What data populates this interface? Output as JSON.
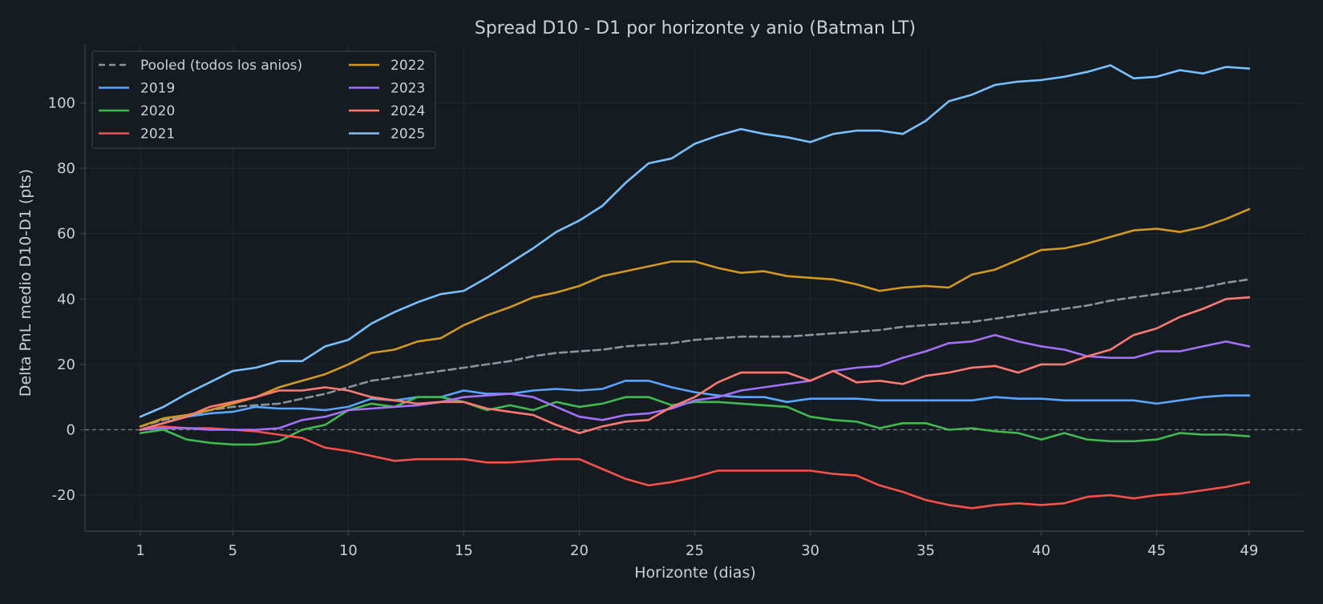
{
  "colors": {
    "background": "#161b22",
    "text": "#c9d1d9",
    "axis": "#3d444d",
    "grid": "#222830",
    "zero_line": "#7d8590",
    "pooled": "#8b949e"
  },
  "chart_data": {
    "type": "line",
    "title": "Spread D10 - D1 por horizonte y anio (Batman LT)",
    "xlabel": "Horizonte (dias)",
    "ylabel": "Delta PnL medio D10-D1 (pts)",
    "xlim": [
      -1.4,
      51.4
    ],
    "ylim": [
      -31,
      118
    ],
    "xticks": [
      1,
      5,
      10,
      15,
      20,
      25,
      30,
      35,
      40,
      45,
      49
    ],
    "yticks": [
      -20,
      0,
      20,
      40,
      60,
      80,
      100
    ],
    "grid": true,
    "zero_line": true,
    "legend": {
      "position": "top-left",
      "columns": 2
    },
    "x": [
      1,
      2,
      3,
      4,
      5,
      6,
      7,
      8,
      9,
      10,
      11,
      12,
      13,
      14,
      15,
      16,
      17,
      18,
      19,
      20,
      21,
      22,
      23,
      24,
      25,
      26,
      27,
      28,
      29,
      30,
      31,
      32,
      33,
      34,
      35,
      36,
      37,
      38,
      39,
      40,
      41,
      42,
      43,
      44,
      45,
      46,
      47,
      48,
      49
    ],
    "series": [
      {
        "name": "Pooled (todos los anios)",
        "color": "#8b949e",
        "dashed": true,
        "values": [
          1,
          3,
          4,
          6,
          7,
          7.5,
          8,
          9.5,
          11,
          13,
          15,
          16,
          17,
          18,
          19,
          20,
          21,
          22.5,
          23.5,
          24,
          24.5,
          25.5,
          26,
          26.5,
          27.5,
          28,
          28.5,
          28.5,
          28.5,
          29,
          29.5,
          30,
          30.5,
          31.5,
          32,
          32.5,
          33,
          34,
          35,
          36,
          37,
          38,
          39.5,
          40.5,
          41.5,
          42.5,
          43.5,
          45,
          46
        ]
      },
      {
        "name": "2019",
        "color": "#58a6ff",
        "values": [
          0,
          2,
          4,
          5,
          5.5,
          7,
          6.5,
          6.5,
          6,
          7,
          9.5,
          9,
          10,
          10,
          12,
          11,
          11,
          12,
          12.5,
          12,
          12.5,
          15,
          15,
          13,
          11.5,
          10.5,
          10,
          10,
          8.5,
          9.5,
          9.5,
          9.5,
          9,
          9,
          9,
          9,
          9,
          10,
          9.5,
          9.5,
          9,
          9,
          9,
          9,
          8,
          9,
          10,
          10.5,
          10.5
        ]
      },
      {
        "name": "2020",
        "color": "#3fb950",
        "values": [
          -1,
          0,
          -3,
          -4,
          -4.5,
          -4.5,
          -3.5,
          0,
          1.5,
          6,
          8,
          7,
          10,
          10,
          8.5,
          6,
          7.5,
          6,
          8.5,
          7,
          8,
          10,
          10,
          7.5,
          8.5,
          8.5,
          8,
          7.5,
          7,
          4,
          3,
          2.5,
          0.5,
          2,
          2,
          0,
          0.5,
          -0.5,
          -1,
          -3,
          -1,
          -3,
          -3.5,
          -3.5,
          -3,
          -1,
          -1.5,
          -1.5,
          -2
        ]
      },
      {
        "name": "2021",
        "color": "#f85149",
        "values": [
          0,
          1,
          0.5,
          0.5,
          0,
          -0.5,
          -1.5,
          -2.5,
          -5.5,
          -6.5,
          -8,
          -9.5,
          -9,
          -9,
          -9,
          -10,
          -10,
          -9.5,
          -9,
          -9,
          -12,
          -15,
          -17,
          -16,
          -14.5,
          -12.5,
          -12.5,
          -12.5,
          -12.5,
          -12.5,
          -13.5,
          -14,
          -17,
          -19,
          -21.5,
          -23,
          -24,
          -23,
          -22.5,
          -23,
          -22.5,
          -20.5,
          -20,
          -21,
          -20,
          -19.5,
          -18.5,
          -17.5,
          -16
        ]
      },
      {
        "name": "2022",
        "color": "#d29922",
        "values": [
          1,
          3.5,
          4.5,
          6,
          8,
          10,
          13,
          15,
          17,
          20,
          23.5,
          24.5,
          27,
          28,
          32,
          35,
          37.5,
          40.5,
          42,
          44,
          47,
          48.5,
          50,
          51.5,
          51.5,
          49.5,
          48,
          48.5,
          47,
          46.5,
          46,
          44.5,
          42.5,
          43.5,
          44,
          43.5,
          47.5,
          49,
          52,
          55,
          55.5,
          57,
          59,
          61,
          61.5,
          60.5,
          62,
          64.5,
          67.5
        ]
      },
      {
        "name": "2023",
        "color": "#a371f7",
        "values": [
          0,
          0.5,
          0.5,
          0,
          0,
          0,
          0.5,
          3,
          4,
          6,
          6.5,
          7,
          7.5,
          8.5,
          10,
          10.5,
          11,
          10,
          7,
          4,
          3,
          4.5,
          5,
          6.5,
          9,
          10,
          12,
          13,
          14,
          15,
          18,
          19,
          19.5,
          22,
          24,
          26.5,
          27,
          29,
          27,
          25.5,
          24.5,
          22.5,
          22,
          22,
          24,
          24,
          25.5,
          27,
          25.5
        ]
      },
      {
        "name": "2024",
        "color": "#ff7b72",
        "values": [
          0,
          2,
          4,
          7,
          8.5,
          10,
          12,
          12,
          13,
          12,
          10,
          9,
          8,
          8.5,
          8.5,
          6.5,
          5.5,
          4.5,
          1.5,
          -1,
          1,
          2.5,
          3,
          7,
          10,
          14.5,
          17.5,
          17.5,
          17.5,
          15,
          18,
          14.5,
          15,
          14,
          16.5,
          17.5,
          19,
          19.5,
          17.5,
          20,
          20,
          22.5,
          24.5,
          29,
          31,
          34.5,
          37,
          40,
          40.5
        ]
      },
      {
        "name": "2025",
        "color": "#79c0ff",
        "values": [
          4,
          7,
          11,
          14.5,
          18,
          19,
          21,
          21,
          25.5,
          27.5,
          32.5,
          36,
          39,
          41.5,
          42.5,
          46.5,
          51,
          55.5,
          60.5,
          64,
          68.5,
          75.5,
          81.5,
          83,
          87.5,
          90,
          92,
          90.5,
          89.5,
          88,
          90.5,
          91.5,
          91.5,
          90.5,
          94.5,
          100.5,
          102.5,
          105.5,
          106.5,
          107,
          108,
          109.5,
          111.5,
          107.5,
          108,
          110,
          109,
          111,
          110.5
        ]
      }
    ]
  }
}
